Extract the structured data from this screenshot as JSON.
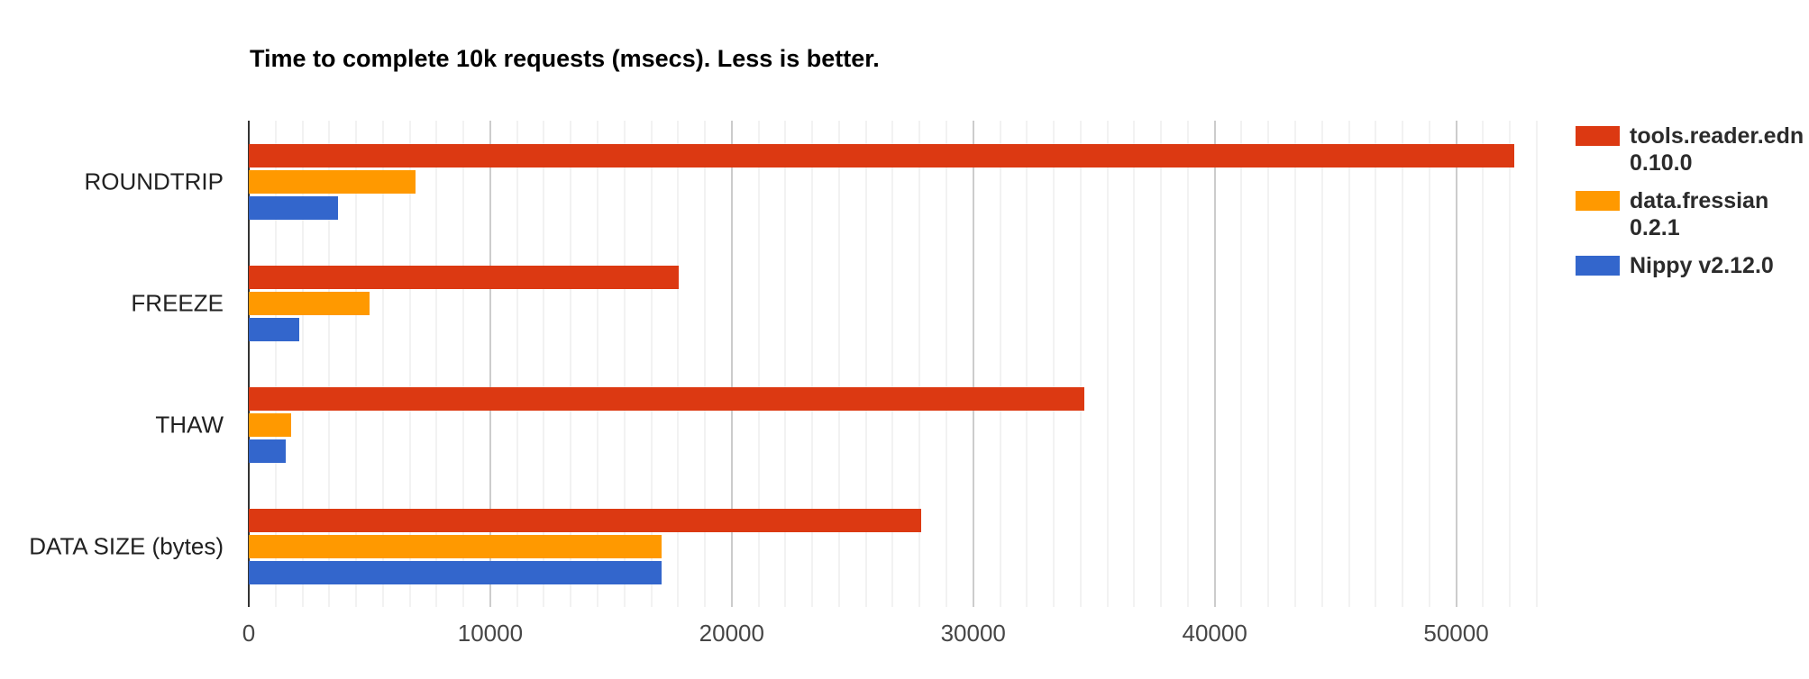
{
  "chart_data": {
    "type": "bar",
    "orientation": "horizontal",
    "title": "Time to complete 10k requests (msecs). Less is better.",
    "categories": [
      "ROUNDTRIP",
      "FREEZE",
      "THAW",
      "DATA SIZE (bytes)"
    ],
    "series": [
      {
        "name": "tools.reader.edn 0.10.0",
        "legend_lines": [
          "tools.reader.edn",
          "0.10.0"
        ],
        "color": "#dc3912",
        "values": [
          52400,
          17800,
          34600,
          27850
        ]
      },
      {
        "name": "data.fressian 0.2.1",
        "legend_lines": [
          "data.fressian",
          "0.2.1"
        ],
        "color": "#ff9900",
        "values": [
          6900,
          5000,
          1750,
          17100
        ]
      },
      {
        "name": "Nippy v2.12.0",
        "legend_lines": [
          "Nippy v2.12.0"
        ],
        "color": "#3366cc",
        "values": [
          3700,
          2100,
          1520,
          17100
        ]
      }
    ],
    "x_ticks": [
      0,
      10000,
      20000,
      30000,
      40000,
      50000
    ],
    "xlim": [
      0,
      53600
    ],
    "xlabel": "",
    "ylabel": "",
    "grid": true,
    "minor_gridlines_per_major": 9,
    "legend_position": "right",
    "colors": {
      "title": "#000000",
      "category_label": "#212121",
      "tick_label": "#464646",
      "axis_baseline": "#333333",
      "major_gridline": "#cccccc",
      "minor_gridline": "#f2f2f2",
      "background": "#ffffff"
    }
  }
}
